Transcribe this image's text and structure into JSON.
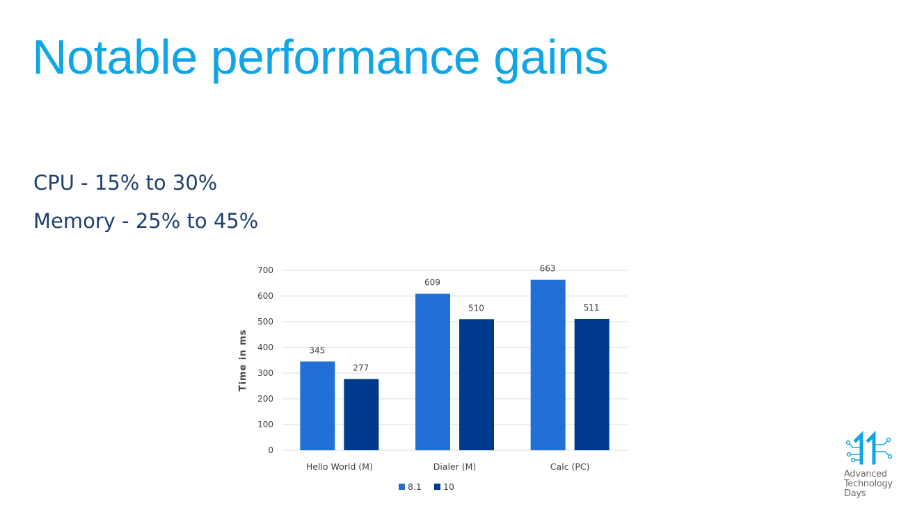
{
  "slide": {
    "title": "Notable performance gains",
    "bullets": [
      "CPU - 15% to 30%",
      "Memory - 25% to 45%"
    ]
  },
  "chart_data": {
    "type": "bar",
    "title": "",
    "xlabel": "",
    "ylabel": "Time in ms",
    "categories": [
      "Hello World (M)",
      "Dialer (M)",
      "Calc (PC)"
    ],
    "series": [
      {
        "name": "8.1",
        "values": [
          345,
          609,
          663
        ],
        "color": "#2170d8"
      },
      {
        "name": "10",
        "values": [
          277,
          510,
          511
        ],
        "color": "#003a8f"
      }
    ],
    "ylim": [
      0,
      700
    ],
    "yticks": [
      0,
      100,
      200,
      300,
      400,
      500,
      600,
      700
    ],
    "grid": true,
    "legend": "bottom",
    "data_labels": true
  },
  "logo": {
    "mark": "11",
    "lines": [
      "Advanced",
      "Technology",
      "Days"
    ],
    "color": "#0fa5e6"
  }
}
